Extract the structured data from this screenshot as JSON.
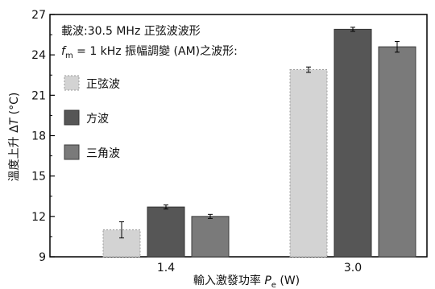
{
  "chart_data": {
    "type": "bar",
    "categories": [
      "1.4",
      "3.0"
    ],
    "series": [
      {
        "name": "正弦波",
        "values": [
          11.0,
          22.9
        ],
        "errors": [
          0.6,
          0.2
        ],
        "color": "#d3d3d3",
        "border": "#9a9a9a",
        "dashed": true
      },
      {
        "name": "方波",
        "values": [
          12.7,
          25.9
        ],
        "errors": [
          0.15,
          0.15
        ],
        "color": "#565656",
        "border": "#333333",
        "dashed": false
      },
      {
        "name": "三角波",
        "values": [
          12.0,
          24.6
        ],
        "errors": [
          0.15,
          0.4
        ],
        "color": "#7a7a7a",
        "border": "#3c3c3c",
        "dashed": false
      }
    ],
    "ylim": [
      9,
      27
    ],
    "yticks": [
      9,
      12,
      15,
      18,
      21,
      24,
      27
    ],
    "ylabel": {
      "prefix": "溫度上升 Δ",
      "var": "T",
      "suffix": " (°C)"
    },
    "xlabel": {
      "prefix": "輸入激發功率 ",
      "var": "P",
      "sub": "e",
      "suffix": " (W)"
    },
    "annotations": {
      "line1": "載波:30.5 MHz 正弦波波形",
      "line2_var": "f",
      "line2_sub": "m",
      "line2_rest": " = 1 kHz 振幅調變 (AM)之波形:"
    },
    "legend_position": "top-left",
    "grid": false
  }
}
